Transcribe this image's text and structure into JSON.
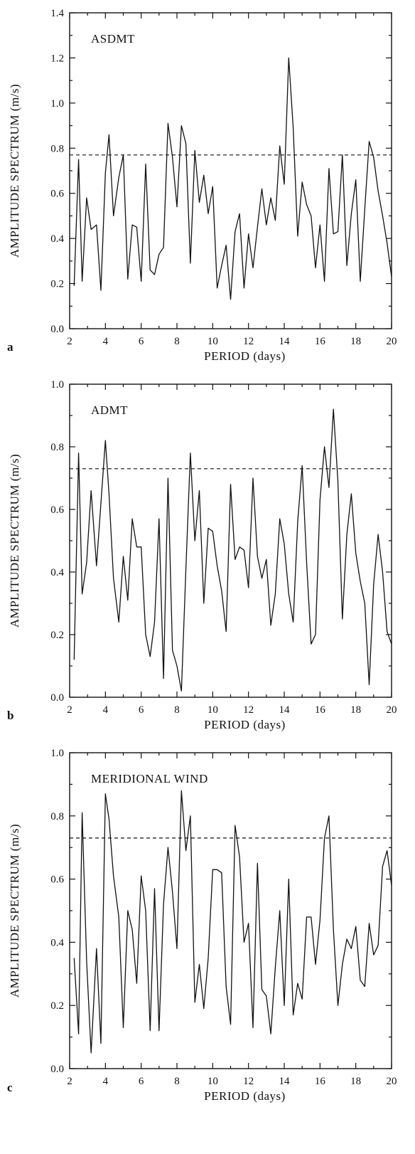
{
  "chart_data": [
    {
      "type": "line",
      "panel_letter": "a",
      "title": "ASDMT",
      "xlabel": "PERIOD  (days)",
      "ylabel": "AMPLITUDE  SPECTRUM  (m/s)",
      "xlim": [
        2,
        20
      ],
      "ylim": [
        0,
        1.4
      ],
      "xticks": [
        2,
        4,
        6,
        8,
        10,
        12,
        14,
        16,
        18,
        20
      ],
      "yticks": [
        0.0,
        0.2,
        0.4,
        0.6,
        0.8,
        1.0,
        1.2,
        1.4
      ],
      "ytick_labels": [
        "0.0",
        "0.2",
        "0.4",
        "0.6",
        "0.8",
        "1.0",
        "1.2",
        "1.4"
      ],
      "threshold": 0.77,
      "x": [
        2.25,
        2.5,
        2.7,
        2.95,
        3.2,
        3.5,
        3.75,
        4.0,
        4.2,
        4.45,
        4.75,
        5.0,
        5.25,
        5.5,
        5.75,
        6.0,
        6.25,
        6.5,
        6.75,
        7.0,
        7.25,
        7.5,
        7.75,
        8.0,
        8.25,
        8.5,
        8.75,
        9.0,
        9.25,
        9.5,
        9.75,
        10.0,
        10.25,
        10.5,
        10.75,
        11.0,
        11.25,
        11.5,
        11.75,
        12.0,
        12.25,
        12.5,
        12.75,
        13.0,
        13.25,
        13.5,
        13.75,
        14.0,
        14.25,
        14.5,
        14.75,
        15.0,
        15.25,
        15.5,
        15.75,
        16.0,
        16.25,
        16.5,
        16.75,
        17.0,
        17.25,
        17.5,
        17.75,
        18.0,
        18.25,
        18.5,
        18.75,
        19.0,
        19.25,
        19.5,
        19.75,
        20.0
      ],
      "y": [
        0.19,
        0.75,
        0.21,
        0.58,
        0.44,
        0.46,
        0.17,
        0.69,
        0.86,
        0.5,
        0.67,
        0.77,
        0.22,
        0.46,
        0.45,
        0.21,
        0.73,
        0.26,
        0.24,
        0.33,
        0.36,
        0.91,
        0.76,
        0.54,
        0.9,
        0.82,
        0.29,
        0.79,
        0.56,
        0.68,
        0.51,
        0.63,
        0.18,
        0.28,
        0.37,
        0.13,
        0.43,
        0.51,
        0.18,
        0.42,
        0.27,
        0.45,
        0.62,
        0.46,
        0.58,
        0.48,
        0.81,
        0.64,
        1.2,
        0.89,
        0.41,
        0.65,
        0.55,
        0.5,
        0.27,
        0.46,
        0.21,
        0.71,
        0.42,
        0.43,
        0.77,
        0.28,
        0.51,
        0.66,
        0.21,
        0.53,
        0.83,
        0.76,
        0.61,
        0.5,
        0.38,
        0.23
      ]
    },
    {
      "type": "line",
      "panel_letter": "b",
      "title": "ADMT",
      "xlabel": "PERIOD  (days)",
      "ylabel": "AMPLITUDE  SPECTRUM  (m/s)",
      "xlim": [
        2,
        20
      ],
      "ylim": [
        0,
        1.0
      ],
      "xticks": [
        2,
        4,
        6,
        8,
        10,
        12,
        14,
        16,
        18,
        20
      ],
      "yticks": [
        0.0,
        0.2,
        0.4,
        0.6,
        0.8,
        1.0
      ],
      "ytick_labels": [
        "0.0",
        "0.2",
        "0.4",
        "0.6",
        "0.8",
        "1.0"
      ],
      "threshold": 0.73,
      "x": [
        2.25,
        2.5,
        2.7,
        2.95,
        3.2,
        3.5,
        3.75,
        4.0,
        4.2,
        4.45,
        4.75,
        5.0,
        5.25,
        5.5,
        5.75,
        6.0,
        6.25,
        6.5,
        6.75,
        7.0,
        7.25,
        7.5,
        7.75,
        8.0,
        8.25,
        8.5,
        8.75,
        9.0,
        9.25,
        9.5,
        9.75,
        10.0,
        10.25,
        10.5,
        10.75,
        11.0,
        11.25,
        11.5,
        11.75,
        12.0,
        12.25,
        12.5,
        12.75,
        13.0,
        13.25,
        13.5,
        13.75,
        14.0,
        14.25,
        14.5,
        14.75,
        15.0,
        15.25,
        15.5,
        15.75,
        16.0,
        16.25,
        16.5,
        16.75,
        17.0,
        17.25,
        17.5,
        17.75,
        18.0,
        18.25,
        18.5,
        18.75,
        19.0,
        19.25,
        19.5,
        19.75,
        20.0
      ],
      "y": [
        0.12,
        0.78,
        0.33,
        0.43,
        0.66,
        0.42,
        0.62,
        0.82,
        0.65,
        0.38,
        0.24,
        0.45,
        0.31,
        0.57,
        0.48,
        0.48,
        0.2,
        0.13,
        0.24,
        0.57,
        0.06,
        0.7,
        0.15,
        0.1,
        0.02,
        0.41,
        0.78,
        0.5,
        0.66,
        0.3,
        0.54,
        0.53,
        0.42,
        0.34,
        0.21,
        0.68,
        0.44,
        0.48,
        0.47,
        0.35,
        0.7,
        0.45,
        0.38,
        0.44,
        0.23,
        0.33,
        0.57,
        0.49,
        0.33,
        0.24,
        0.56,
        0.74,
        0.43,
        0.17,
        0.2,
        0.63,
        0.8,
        0.67,
        0.92,
        0.69,
        0.25,
        0.52,
        0.65,
        0.46,
        0.37,
        0.3,
        0.04,
        0.36,
        0.52,
        0.4,
        0.21,
        0.17
      ]
    },
    {
      "type": "line",
      "panel_letter": "c",
      "title": "MERIDIONAL  WIND",
      "xlabel": "PERIOD  (days)",
      "ylabel": "AMPLITUDE  SPECTRUM  (m/s)",
      "xlim": [
        2,
        20
      ],
      "ylim": [
        0,
        1.0
      ],
      "xticks": [
        2,
        4,
        6,
        8,
        10,
        12,
        14,
        16,
        18,
        20
      ],
      "yticks": [
        0.0,
        0.2,
        0.4,
        0.6,
        0.8,
        1.0
      ],
      "ytick_labels": [
        "0.0",
        "0.2",
        "0.4",
        "0.6",
        "0.8",
        "1.0"
      ],
      "threshold": 0.73,
      "x": [
        2.25,
        2.5,
        2.7,
        2.95,
        3.2,
        3.5,
        3.75,
        4.0,
        4.2,
        4.45,
        4.75,
        5.0,
        5.25,
        5.5,
        5.75,
        6.0,
        6.25,
        6.5,
        6.75,
        7.0,
        7.25,
        7.5,
        7.75,
        8.0,
        8.25,
        8.5,
        8.75,
        9.0,
        9.25,
        9.5,
        9.75,
        10.0,
        10.25,
        10.5,
        10.75,
        11.0,
        11.25,
        11.5,
        11.75,
        12.0,
        12.25,
        12.5,
        12.75,
        13.0,
        13.25,
        13.5,
        13.75,
        14.0,
        14.25,
        14.5,
        14.75,
        15.0,
        15.25,
        15.5,
        15.75,
        16.0,
        16.25,
        16.5,
        16.75,
        17.0,
        17.25,
        17.5,
        17.75,
        18.0,
        18.25,
        18.5,
        18.75,
        19.0,
        19.25,
        19.5,
        19.75,
        20.0
      ],
      "y": [
        0.35,
        0.11,
        0.81,
        0.34,
        0.05,
        0.38,
        0.08,
        0.87,
        0.79,
        0.61,
        0.48,
        0.13,
        0.5,
        0.44,
        0.27,
        0.61,
        0.5,
        0.12,
        0.57,
        0.12,
        0.52,
        0.7,
        0.56,
        0.38,
        0.88,
        0.69,
        0.8,
        0.21,
        0.33,
        0.19,
        0.35,
        0.63,
        0.63,
        0.62,
        0.26,
        0.14,
        0.77,
        0.67,
        0.4,
        0.46,
        0.13,
        0.65,
        0.25,
        0.23,
        0.11,
        0.32,
        0.5,
        0.2,
        0.6,
        0.17,
        0.27,
        0.22,
        0.48,
        0.48,
        0.33,
        0.47,
        0.73,
        0.8,
        0.44,
        0.2,
        0.33,
        0.41,
        0.38,
        0.45,
        0.28,
        0.26,
        0.46,
        0.36,
        0.39,
        0.64,
        0.69,
        0.58
      ]
    }
  ]
}
